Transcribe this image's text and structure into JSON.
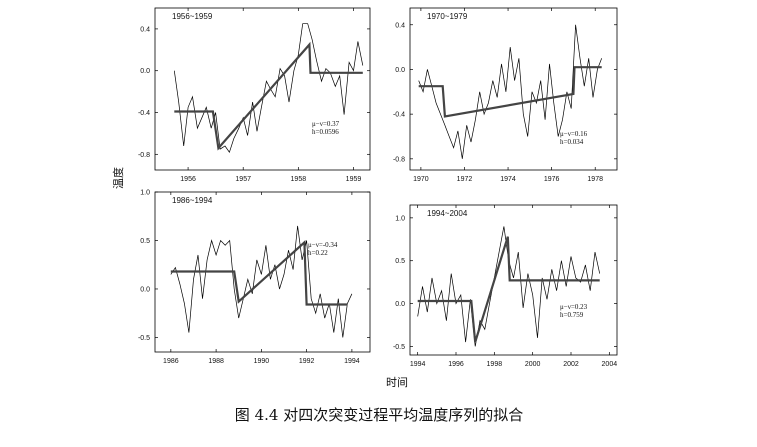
{
  "figure": {
    "caption": "图 4.4  对四次突变过程平均温度序列的拟合",
    "ylabel": "温度",
    "xlabel": "时间"
  },
  "chart_data": [
    {
      "type": "line",
      "title": "1956~1959",
      "xlim": [
        1955.4,
        1959.3
      ],
      "ylim": [
        -0.95,
        0.6
      ],
      "xticks": [
        1956,
        1957,
        1958,
        1959
      ],
      "yticks": [
        -0.8,
        -0.4,
        0.0,
        0.4
      ],
      "xtick_labels": [
        "1956",
        "1957",
        "1958",
        "1959"
      ],
      "ytick_labels": [
        "-0.8",
        "-0.4",
        "0.0",
        "0.4"
      ],
      "annotation": [
        "μ−ν=0.37",
        "h=0.0596"
      ],
      "series": [
        {
          "kind": "observed",
          "x": [
            1955.75,
            1955.83,
            1955.92,
            1956.0,
            1956.08,
            1956.17,
            1956.25,
            1956.33,
            1956.42,
            1956.5,
            1956.58,
            1956.67,
            1956.75,
            1956.83,
            1956.92,
            1957.0,
            1957.08,
            1957.17,
            1957.25,
            1957.33,
            1957.42,
            1957.5,
            1957.58,
            1957.67,
            1957.75,
            1957.83,
            1957.92,
            1958.0,
            1958.08,
            1958.17,
            1958.25,
            1958.33,
            1958.42,
            1958.5,
            1958.58,
            1958.67,
            1958.75,
            1958.83,
            1958.92,
            1959.0,
            1959.08,
            1959.17
          ],
          "y": [
            0.0,
            -0.3,
            -0.72,
            -0.35,
            -0.25,
            -0.55,
            -0.45,
            -0.35,
            -0.55,
            -0.4,
            -0.75,
            -0.72,
            -0.78,
            -0.65,
            -0.55,
            -0.45,
            -0.62,
            -0.3,
            -0.58,
            -0.35,
            -0.1,
            -0.18,
            -0.25,
            0.02,
            -0.05,
            -0.3,
            0.0,
            0.15,
            0.45,
            0.45,
            0.3,
            0.1,
            -0.1,
            0.02,
            -0.02,
            -0.15,
            -0.05,
            -0.42,
            0.08,
            0.0,
            0.28,
            0.05
          ]
        },
        {
          "kind": "fitted",
          "x": [
            1955.75,
            1956.45,
            1956.55,
            1958.2,
            1958.22,
            1959.17
          ],
          "y": [
            -0.39,
            -0.39,
            -0.74,
            0.25,
            -0.02,
            -0.02
          ]
        }
      ]
    },
    {
      "type": "line",
      "title": "1970~1979",
      "xlim": [
        1969.5,
        1979.0
      ],
      "ylim": [
        -0.9,
        0.55
      ],
      "xticks": [
        1970,
        1972,
        1974,
        1976,
        1978
      ],
      "yticks": [
        -0.8,
        -0.4,
        0.0,
        0.4
      ],
      "xtick_labels": [
        "1970",
        "1972",
        "1974",
        "1976",
        "1978"
      ],
      "ytick_labels": [
        "-0.8",
        "-0.4",
        "0.0",
        "0.4"
      ],
      "annotation": [
        "μ−ν=0.16",
        "h=0.034"
      ],
      "series": [
        {
          "kind": "observed",
          "x": [
            1969.9,
            1970.1,
            1970.3,
            1970.5,
            1970.7,
            1970.9,
            1971.1,
            1971.3,
            1971.5,
            1971.7,
            1971.9,
            1972.1,
            1972.3,
            1972.5,
            1972.7,
            1972.9,
            1973.1,
            1973.3,
            1973.5,
            1973.7,
            1973.9,
            1974.1,
            1974.3,
            1974.5,
            1974.7,
            1974.9,
            1975.1,
            1975.3,
            1975.5,
            1975.7,
            1975.9,
            1976.1,
            1976.3,
            1976.5,
            1976.7,
            1976.9,
            1977.1,
            1977.3,
            1977.5,
            1977.7,
            1977.9,
            1978.1,
            1978.3
          ],
          "y": [
            -0.1,
            -0.2,
            0.0,
            -0.15,
            -0.3,
            -0.4,
            -0.5,
            -0.6,
            -0.7,
            -0.55,
            -0.8,
            -0.5,
            -0.65,
            -0.45,
            -0.2,
            -0.4,
            -0.3,
            -0.1,
            -0.25,
            0.05,
            -0.2,
            0.2,
            -0.1,
            0.1,
            -0.4,
            -0.6,
            -0.2,
            -0.3,
            -0.1,
            -0.45,
            0.05,
            -0.3,
            -0.6,
            -0.45,
            -0.2,
            -0.35,
            0.4,
            0.1,
            -0.15,
            0.1,
            -0.25,
            0.0,
            0.1
          ]
        },
        {
          "kind": "fitted",
          "x": [
            1969.9,
            1971.0,
            1971.1,
            1977.0,
            1977.05,
            1978.3
          ],
          "y": [
            -0.15,
            -0.15,
            -0.42,
            -0.22,
            0.02,
            0.02
          ]
        }
      ]
    },
    {
      "type": "line",
      "title": "1986~1994",
      "xlim": [
        1985.3,
        1994.8
      ],
      "ylim": [
        -0.65,
        1.0
      ],
      "xticks": [
        1986,
        1988,
        1990,
        1992,
        1994
      ],
      "yticks": [
        -0.5,
        0.0,
        0.5,
        1.0
      ],
      "xtick_labels": [
        "1986",
        "1988",
        "1990",
        "1992",
        "1994"
      ],
      "ytick_labels": [
        "-0.5",
        "0.0",
        "0.5",
        "1.0"
      ],
      "annotation": [
        "μ−ν=-0.34",
        "h=0.22"
      ],
      "series": [
        {
          "kind": "observed",
          "x": [
            1986.0,
            1986.2,
            1986.4,
            1986.6,
            1986.8,
            1987.0,
            1987.2,
            1987.4,
            1987.6,
            1987.8,
            1988.0,
            1988.2,
            1988.4,
            1988.6,
            1988.8,
            1989.0,
            1989.2,
            1989.4,
            1989.6,
            1989.8,
            1990.0,
            1990.2,
            1990.4,
            1990.6,
            1990.8,
            1991.0,
            1991.2,
            1991.4,
            1991.6,
            1991.8,
            1992.0,
            1992.2,
            1992.4,
            1992.6,
            1992.8,
            1993.0,
            1993.2,
            1993.4,
            1993.6,
            1993.8,
            1994.0
          ],
          "y": [
            0.15,
            0.22,
            0.05,
            -0.15,
            -0.45,
            0.1,
            0.35,
            -0.1,
            0.3,
            0.5,
            0.35,
            0.5,
            0.45,
            0.5,
            0.0,
            -0.3,
            -0.1,
            0.1,
            -0.05,
            0.3,
            0.15,
            0.45,
            0.1,
            0.25,
            0.0,
            0.15,
            0.4,
            0.2,
            0.65,
            0.3,
            0.5,
            -0.1,
            -0.25,
            -0.05,
            -0.3,
            -0.15,
            -0.45,
            -0.1,
            -0.5,
            -0.15,
            -0.05
          ]
        },
        {
          "kind": "fitted",
          "x": [
            1986.0,
            1988.8,
            1989.0,
            1991.9,
            1992.0,
            1993.8
          ],
          "y": [
            0.18,
            0.18,
            -0.13,
            0.48,
            -0.16,
            -0.16
          ]
        }
      ]
    },
    {
      "type": "line",
      "title": "1994~2004",
      "xlim": [
        1993.6,
        2004.4
      ],
      "ylim": [
        -0.6,
        1.15
      ],
      "xticks": [
        1994,
        1996,
        1998,
        2000,
        2002,
        2004
      ],
      "yticks": [
        -0.5,
        0.0,
        0.5,
        1.0
      ],
      "xtick_labels": [
        "1994",
        "1996",
        "1998",
        "2000",
        "2002",
        "2004"
      ],
      "ytick_labels": [
        "-0.5",
        "0.0",
        "0.5",
        "1.0"
      ],
      "annotation": [
        "μ−ν=0.23",
        "h=0.759"
      ],
      "series": [
        {
          "kind": "observed",
          "x": [
            1994.0,
            1994.25,
            1994.5,
            1994.75,
            1995.0,
            1995.25,
            1995.5,
            1995.75,
            1996.0,
            1996.25,
            1996.5,
            1996.75,
            1997.0,
            1997.25,
            1997.5,
            1997.75,
            1998.0,
            1998.25,
            1998.5,
            1998.75,
            1999.0,
            1999.25,
            1999.5,
            1999.75,
            2000.0,
            2000.25,
            2000.5,
            2000.75,
            2001.0,
            2001.25,
            2001.5,
            2001.75,
            2002.0,
            2002.25,
            2002.5,
            2002.75,
            2003.0,
            2003.25,
            2003.5
          ],
          "y": [
            -0.15,
            0.2,
            -0.1,
            0.3,
            0.0,
            0.15,
            -0.2,
            0.35,
            0.0,
            0.1,
            -0.45,
            0.05,
            -0.5,
            -0.2,
            -0.3,
            0.0,
            0.3,
            0.6,
            0.9,
            0.5,
            0.3,
            0.6,
            -0.05,
            0.35,
            0.1,
            -0.4,
            0.3,
            0.05,
            0.4,
            0.15,
            0.5,
            0.2,
            0.55,
            0.3,
            0.25,
            0.45,
            0.15,
            0.6,
            0.35
          ]
        },
        {
          "kind": "fitted",
          "x": [
            1994.0,
            1996.8,
            1997.0,
            1998.7,
            1998.8,
            2003.5
          ],
          "y": [
            0.03,
            0.03,
            -0.45,
            0.78,
            0.27,
            0.27
          ]
        }
      ]
    }
  ]
}
